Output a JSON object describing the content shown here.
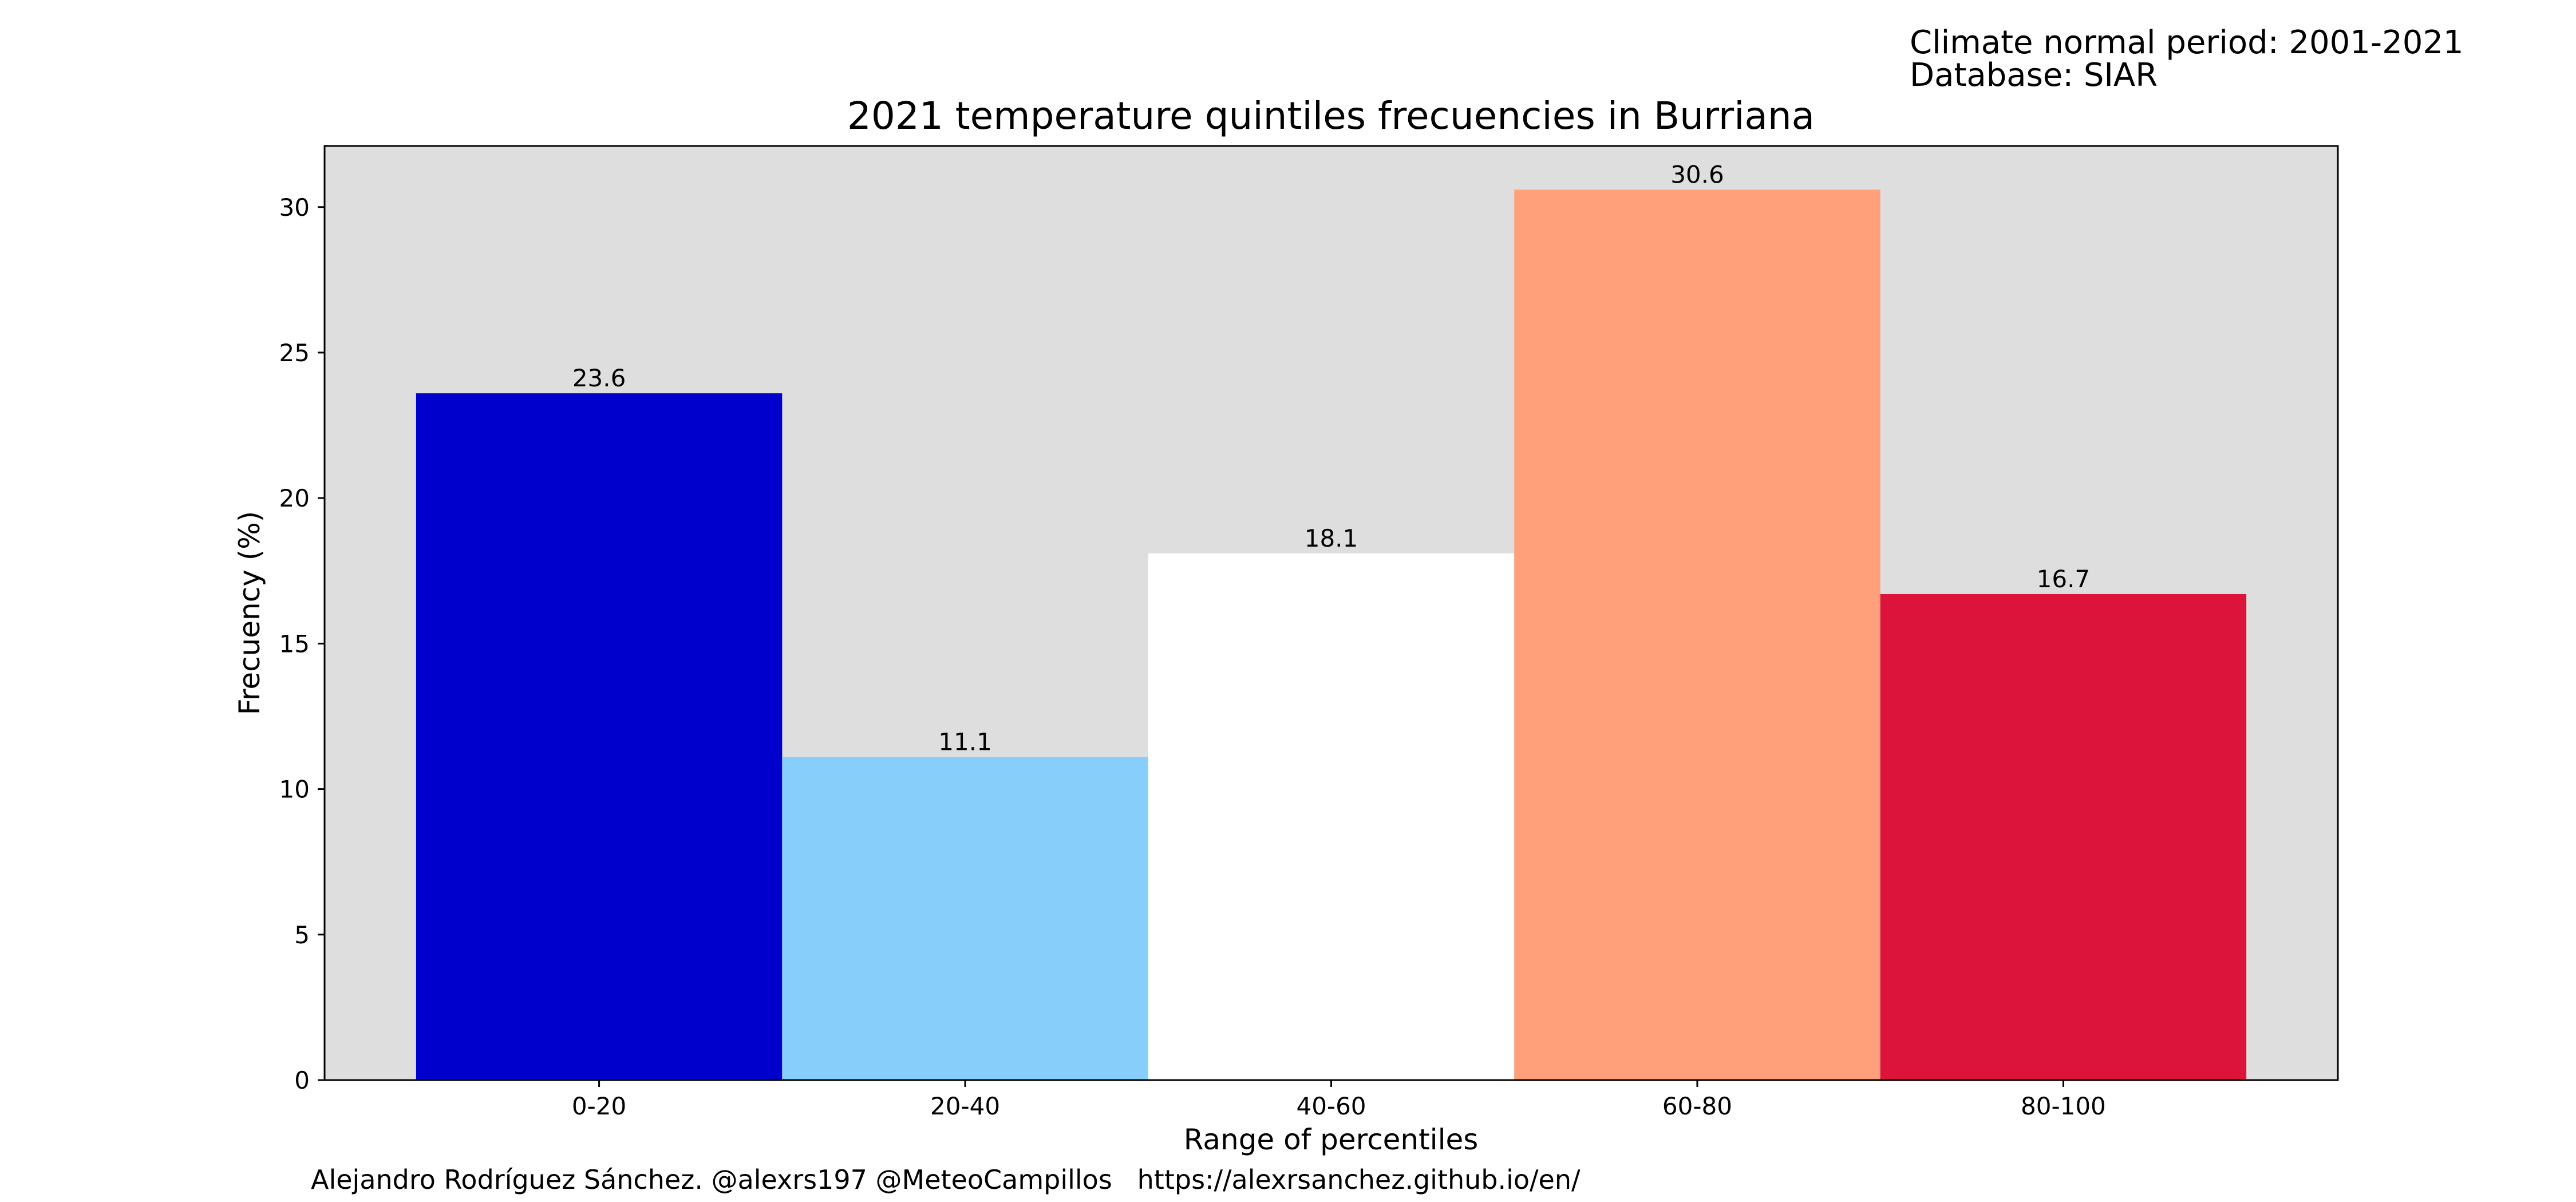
{
  "note": {
    "period": "Climate normal period: 2001-2021",
    "database": "Database: SIAR"
  },
  "footer": {
    "credit": "Alejandro Rodríguez Sánchez. @alexrs197 @MeteoCampillos   https://alexrsanchez.github.io/en/"
  },
  "chart_data": {
    "type": "bar",
    "title": "2021 temperature quintiles frecuencies in Burriana",
    "xlabel": "Range of percentiles",
    "ylabel": "Frecuency (%)",
    "categories": [
      "0-20",
      "20-40",
      "40-60",
      "60-80",
      "80-100"
    ],
    "values": [
      23.6,
      11.1,
      18.1,
      30.6,
      16.7
    ],
    "value_labels": [
      "23.6",
      "11.1",
      "18.1",
      "30.6",
      "16.7"
    ],
    "bar_colors": [
      "#0000cd",
      "#87cefa",
      "#ffffff",
      "#ffa07a",
      "#dc143c"
    ],
    "plot_background": "#dedede",
    "ylim": [
      0,
      32.1
    ],
    "yticks": [
      0,
      5,
      10,
      15,
      20,
      25,
      30
    ],
    "grid": false,
    "legend": false
  }
}
